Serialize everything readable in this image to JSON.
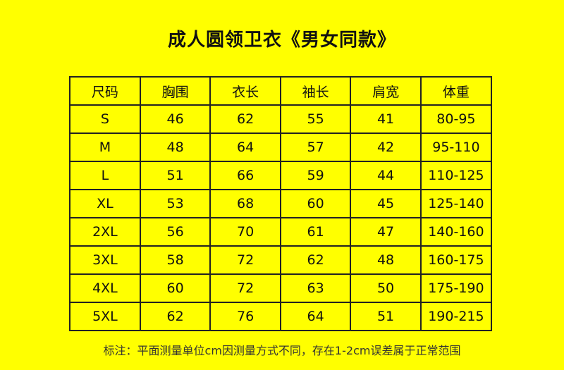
{
  "title": "成人圆领卫衣《男女同款》",
  "table": {
    "headers": [
      "尺码",
      "胸围",
      "衣长",
      "袖长",
      "肩宽",
      "体重"
    ],
    "rows": [
      [
        "S",
        "46",
        "62",
        "55",
        "41",
        "80-95"
      ],
      [
        "M",
        "48",
        "64",
        "57",
        "42",
        "95-110"
      ],
      [
        "L",
        "51",
        "66",
        "59",
        "44",
        "110-125"
      ],
      [
        "XL",
        "53",
        "68",
        "60",
        "45",
        "125-140"
      ],
      [
        "2XL",
        "56",
        "70",
        "61",
        "47",
        "140-160"
      ],
      [
        "3XL",
        "58",
        "72",
        "62",
        "48",
        "160-175"
      ],
      [
        "4XL",
        "60",
        "72",
        "63",
        "50",
        "175-190"
      ],
      [
        "5XL",
        "62",
        "76",
        "64",
        "51",
        "190-215"
      ]
    ]
  },
  "footnote": "标注：平面测量单位cm因测量方式不同，存在1-2cm误差属于正常范围",
  "colors": {
    "background": "#ffff00",
    "border": "#222222"
  }
}
